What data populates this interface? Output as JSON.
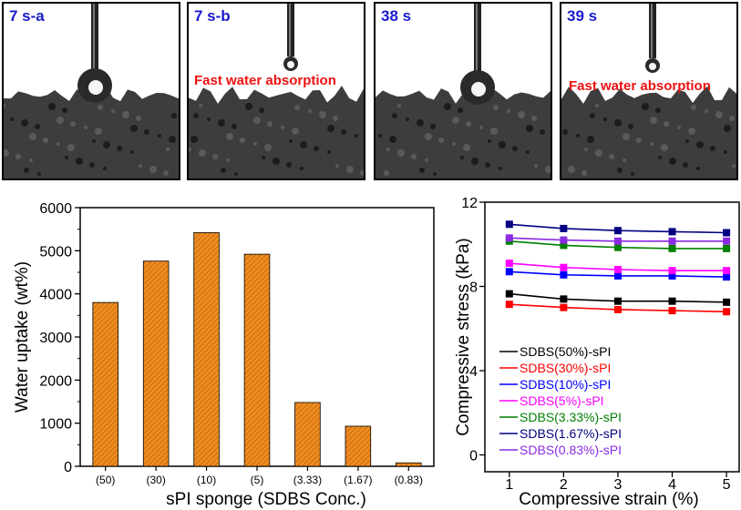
{
  "panels": [
    {
      "time": "7 s-a",
      "annotation": "",
      "droplet": "large"
    },
    {
      "time": "7 s-b",
      "annotation": "Fast water absorption",
      "droplet": "small"
    },
    {
      "time": "38 s",
      "annotation": "",
      "droplet": "large"
    },
    {
      "time": "39 s",
      "annotation": "Fast water absorption",
      "droplet": "small"
    }
  ],
  "chart_data": [
    {
      "type": "bar",
      "title": "",
      "xlabel": "sPI sponge (SDBS Conc.)",
      "ylabel": "Water uptake (wt%)",
      "categories": [
        "(50)",
        "(30)",
        "(10)",
        "(5)",
        "(3.33)",
        "(1.67)",
        "(0.83)"
      ],
      "values": [
        3800,
        4760,
        5420,
        4920,
        1480,
        930,
        80
      ],
      "ylim": [
        0,
        6000
      ],
      "yticks": [
        "0",
        "1000",
        "2000",
        "3000",
        "4000",
        "5000",
        "6000"
      ],
      "bar_color": "#f08c1e",
      "grid": false
    },
    {
      "type": "line",
      "title": "",
      "xlabel": "Compressive strain (%)",
      "ylabel": "Compressive stress (kPa)",
      "x": [
        1,
        2,
        3,
        4,
        5
      ],
      "xticks": [
        "1",
        "2",
        "3",
        "4",
        "5"
      ],
      "ylim": [
        -0.8,
        12
      ],
      "yticks": [
        "0",
        "4",
        "8",
        "12"
      ],
      "legend_position": "bottom-left",
      "grid": false,
      "series": [
        {
          "name": "SDBS(50%)-sPI",
          "color": "#000000",
          "values": [
            7.65,
            7.4,
            7.3,
            7.3,
            7.25
          ]
        },
        {
          "name": "SDBS(30%)-sPI",
          "color": "#ff0000",
          "values": [
            7.15,
            7.0,
            6.9,
            6.85,
            6.8
          ]
        },
        {
          "name": "SDBS(10%)-sPI",
          "color": "#0000ff",
          "values": [
            8.7,
            8.55,
            8.5,
            8.5,
            8.45
          ]
        },
        {
          "name": "SDBS(5%)-sPI",
          "color": "#ff00ff",
          "values": [
            9.1,
            8.9,
            8.8,
            8.75,
            8.75
          ]
        },
        {
          "name": "SDBS(3.33%)-sPI",
          "color": "#008000",
          "values": [
            10.15,
            9.95,
            9.85,
            9.8,
            9.8
          ]
        },
        {
          "name": "SDBS(1.67%)-sPI",
          "color": "#000080",
          "values": [
            10.95,
            10.75,
            10.65,
            10.6,
            10.55
          ]
        },
        {
          "name": "SDBS(0.83%)-sPI",
          "color": "#8a2be2",
          "values": [
            10.3,
            10.2,
            10.15,
            10.15,
            10.15
          ]
        }
      ]
    }
  ]
}
